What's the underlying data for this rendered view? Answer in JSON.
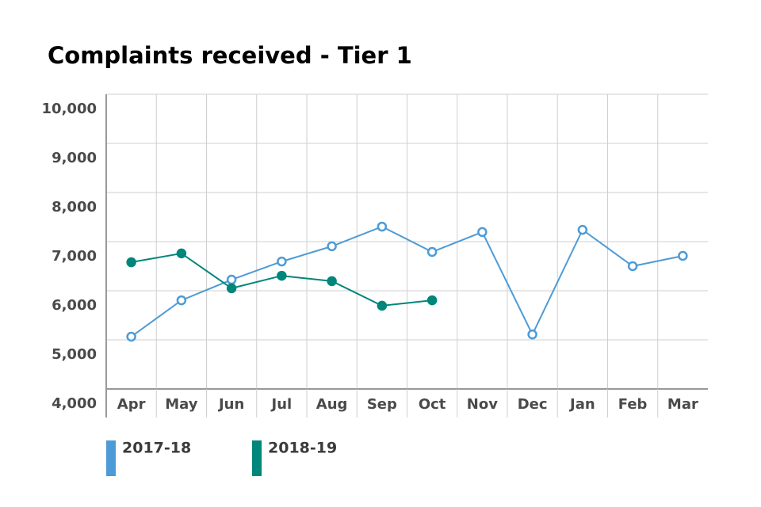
{
  "chart_data": {
    "type": "line",
    "title": "Complaints received - Tier 1",
    "categories": [
      "Apr",
      "May",
      "Jun",
      "Jul",
      "Aug",
      "Sep",
      "Oct",
      "Nov",
      "Dec",
      "Jan",
      "Feb",
      "Mar"
    ],
    "series": [
      {
        "name": "2017-18",
        "color": "#4d9bd6",
        "marker": "open",
        "values": [
          5065,
          5805,
          6225,
          6595,
          6905,
          7305,
          6790,
          7195,
          5110,
          7240,
          6500,
          6710
        ]
      },
      {
        "name": "2018-19",
        "color": "#00867a",
        "marker": "filled",
        "values": [
          6580,
          6760,
          6050,
          6305,
          6195,
          5695,
          5805,
          null,
          null,
          null,
          null,
          null
        ]
      }
    ],
    "ylim": [
      4000,
      10000
    ],
    "yticks": [
      {
        "value": 4000,
        "label": "4,000"
      },
      {
        "value": 5000,
        "label": "5,000"
      },
      {
        "value": 6000,
        "label": "6,000"
      },
      {
        "value": 7000,
        "label": "7,000"
      },
      {
        "value": 8000,
        "label": "8,000"
      },
      {
        "value": 9000,
        "label": "9,000"
      },
      {
        "value": 10000,
        "label": "10,000"
      }
    ],
    "grid": true
  }
}
